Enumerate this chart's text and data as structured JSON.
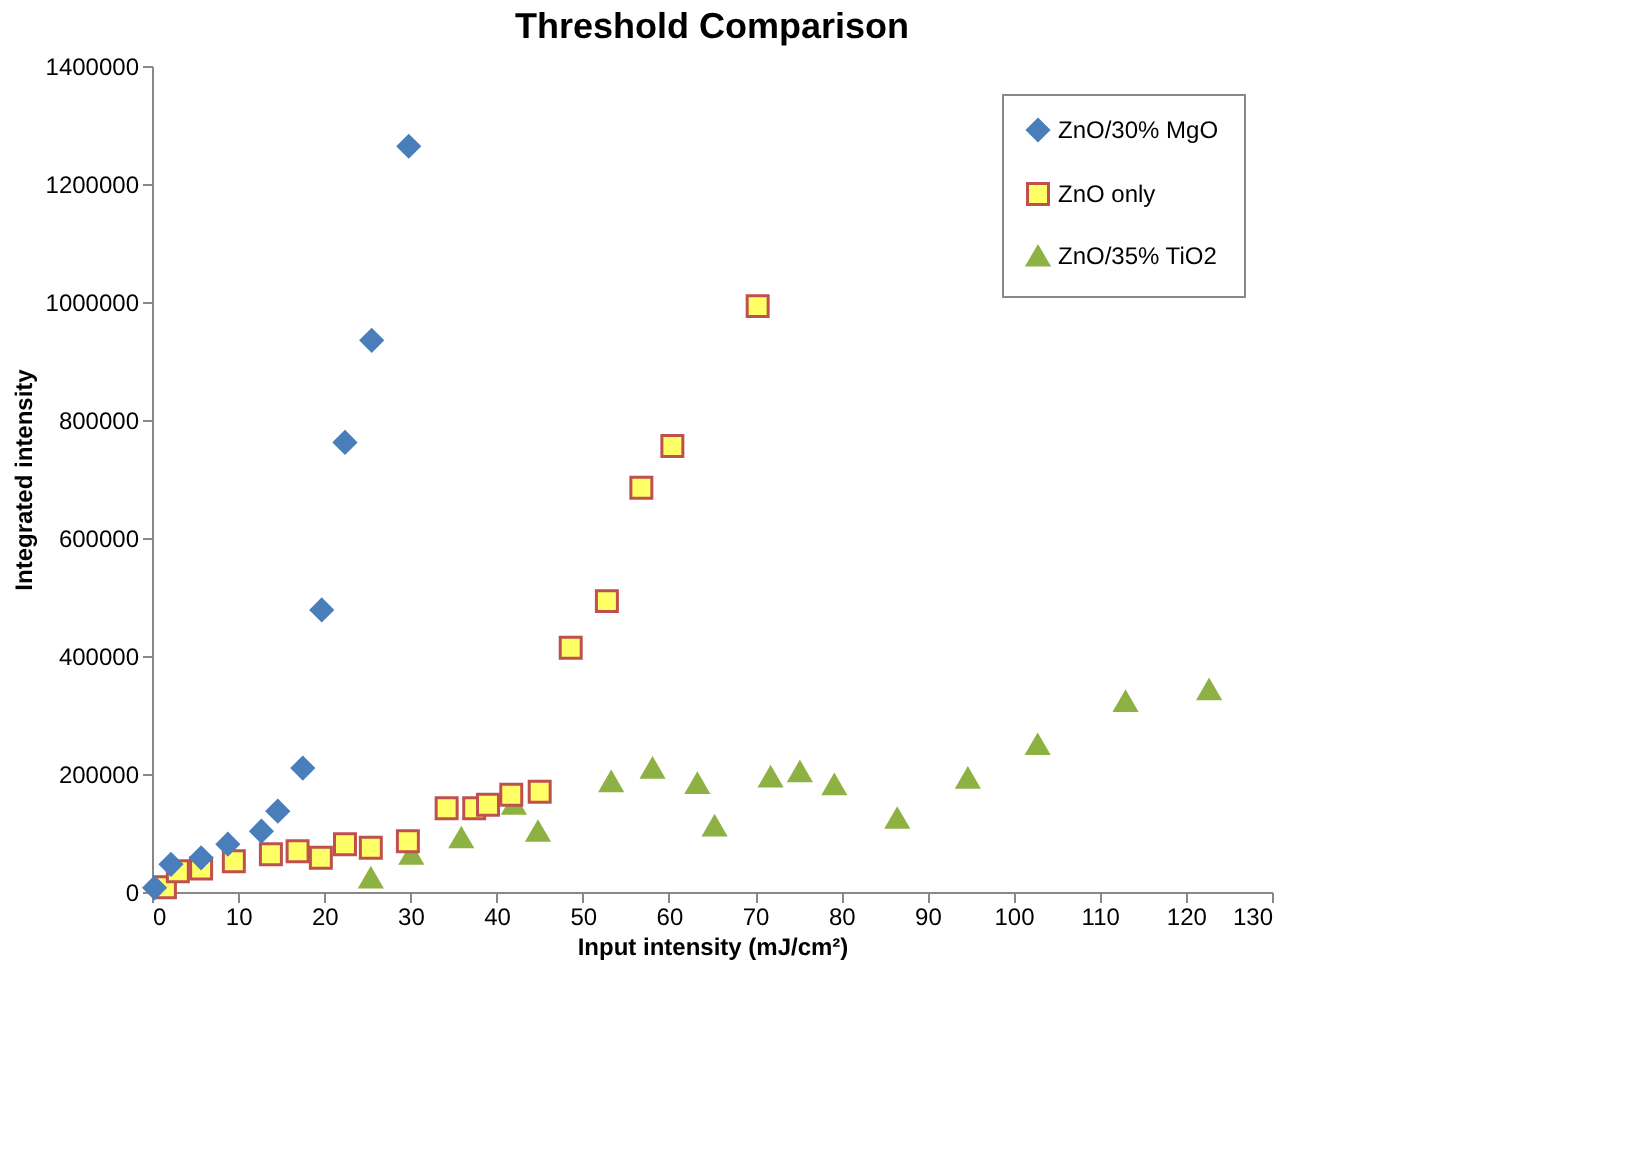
{
  "chart_data": {
    "type": "scatter",
    "title": "Threshold Comparison",
    "xlabel": "Input intensity (mJ/cm²)",
    "ylabel": "Integrated intensity",
    "xlim": [
      0,
      130
    ],
    "xticks": [
      0,
      10,
      20,
      30,
      40,
      50,
      60,
      70,
      80,
      90,
      100,
      110,
      120,
      130
    ],
    "ylim": [
      0,
      1400000
    ],
    "yticks": [
      0,
      200000,
      400000,
      600000,
      800000,
      1000000,
      1200000,
      1400000
    ],
    "grid": false,
    "legend": "top right",
    "series": [
      {
        "name": "ZnO/30% MgO",
        "color": "#4a7ebb",
        "marker": "diamond",
        "x": [
          0.3,
          2.2,
          5.7,
          8.8,
          12.7,
          14.6,
          17.5,
          19.7,
          22.4,
          25.5,
          29.8
        ],
        "values": [
          7000,
          47000,
          58000,
          81000,
          103000,
          137000,
          210000,
          478000,
          762000,
          935000,
          1264000
        ]
      },
      {
        "name": "ZnO only",
        "color": "#ffff66",
        "marker": "square",
        "x": [
          1.5,
          3.0,
          5.7,
          9.5,
          13.8,
          16.9,
          19.6,
          22.4,
          25.4,
          29.7,
          34.2,
          37.4,
          39.0,
          41.7,
          45.0,
          48.6,
          52.8,
          56.8,
          60.4,
          70.3
        ],
        "values": [
          8000,
          35000,
          40000,
          52000,
          64000,
          69000,
          58000,
          81000,
          75000,
          86000,
          142000,
          142000,
          148000,
          165000,
          170000,
          414000,
          493000,
          685000,
          756000,
          993000
        ]
      },
      {
        "name": "ZnO/35% TiO2",
        "color": "#8db243",
        "marker": "triangle",
        "x": [
          25.4,
          30.1,
          35.9,
          42.0,
          44.8,
          53.3,
          58.1,
          63.3,
          65.3,
          71.8,
          75.2,
          79.2,
          86.5,
          94.7,
          102.8,
          113.0,
          122.7
        ],
        "values": [
          24000,
          64000,
          92000,
          149000,
          103000,
          187000,
          210000,
          184000,
          112000,
          195000,
          204000,
          182000,
          125000,
          193000,
          250000,
          323000,
          343000
        ]
      }
    ]
  }
}
